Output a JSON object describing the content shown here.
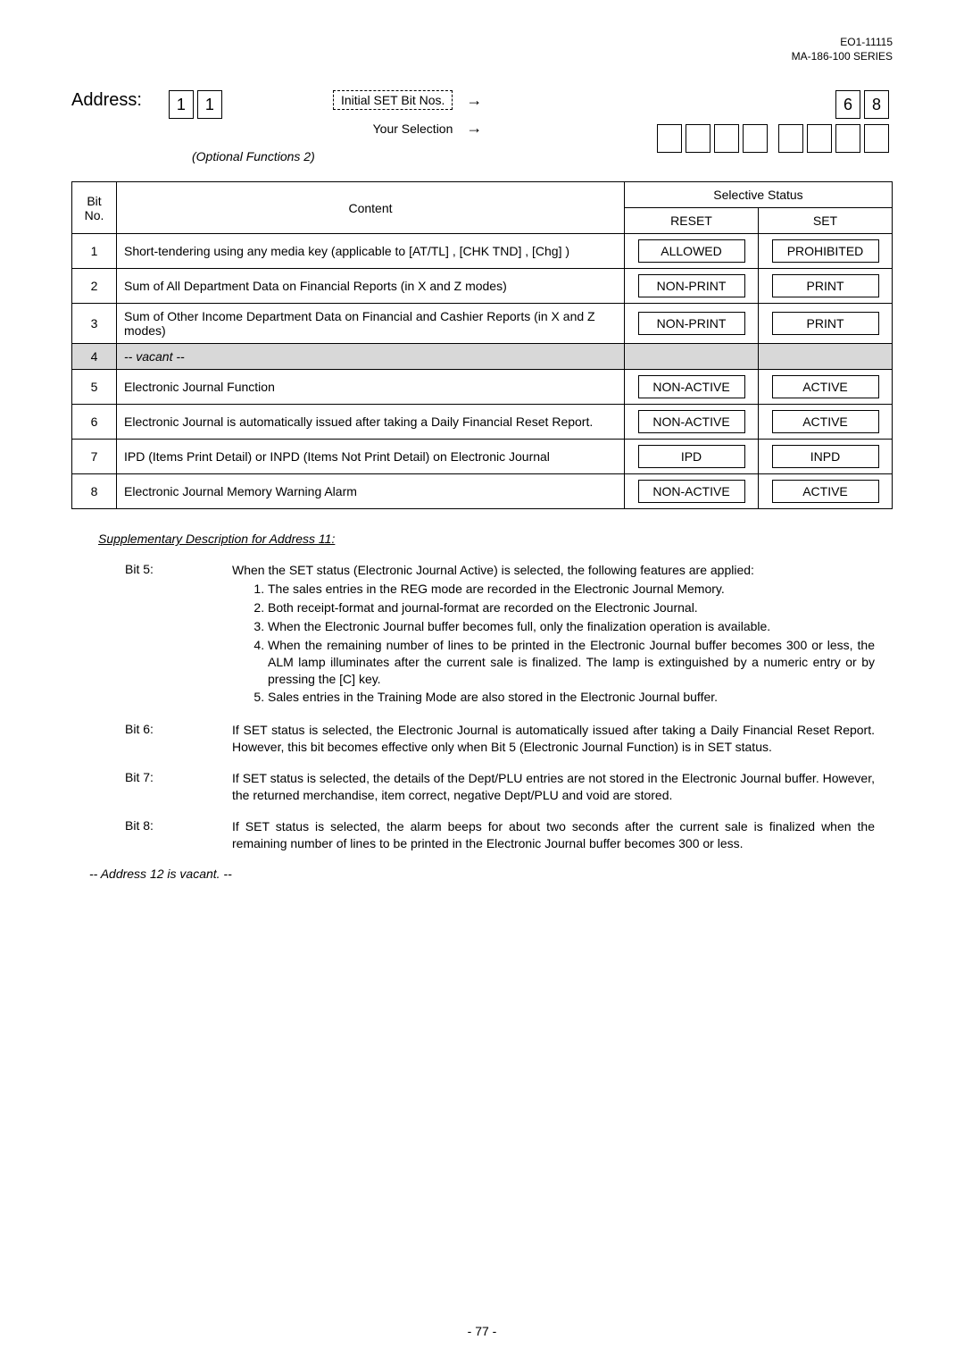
{
  "header": {
    "code": "EO1-11115",
    "series": "MA-186-100 SERIES"
  },
  "address": {
    "label": "Address:",
    "digits": [
      "1",
      "1"
    ],
    "initial_label": "Initial SET Bit Nos.",
    "arrow1": "→",
    "selection_label": "Your Selection",
    "arrow2": "→",
    "preset_digits": [
      "6",
      "8"
    ],
    "subtitle": "(Optional Functions 2)"
  },
  "table": {
    "headers": {
      "bit": "Bit\nNo.",
      "content": "Content",
      "status": "Selective Status",
      "reset": "RESET",
      "set": "SET"
    },
    "rows": [
      {
        "bit": "1",
        "content": "Short-tendering using any media key (applicable to [AT/TL] , [CHK TND] , [Chg] )",
        "reset": "ALLOWED",
        "set": "PROHIBITED"
      },
      {
        "bit": "2",
        "content": "Sum of All Department Data on Financial Reports (in X and Z modes)",
        "reset": "NON-PRINT",
        "set": "PRINT"
      },
      {
        "bit": "3",
        "content": "Sum of Other Income Department Data on Financial and Cashier Reports (in X and Z modes)",
        "reset": "NON-PRINT",
        "set": "PRINT"
      },
      {
        "bit": "4",
        "content": "-- vacant --",
        "vacant": true
      },
      {
        "bit": "5",
        "content": "Electronic Journal Function",
        "reset": "NON-ACTIVE",
        "set": "ACTIVE"
      },
      {
        "bit": "6",
        "content": "Electronic Journal is automatically issued after taking a Daily Financial Reset Report.",
        "reset": "NON-ACTIVE",
        "set": "ACTIVE"
      },
      {
        "bit": "7",
        "content": "IPD (Items Print Detail) or INPD (Items Not Print Detail) on Electronic Journal",
        "reset": "IPD",
        "set": "INPD"
      },
      {
        "bit": "8",
        "content": "Electronic Journal Memory Warning Alarm",
        "reset": "NON-ACTIVE",
        "set": "ACTIVE"
      }
    ]
  },
  "supp": {
    "title": "Supplementary Description for Address 11:",
    "bit5": {
      "label": "Bit 5:",
      "intro": "When the SET status (Electronic Journal Active) is selected, the following features are applied:",
      "items": [
        "The sales entries in the  REG  mode are recorded in the Electronic Journal Memory.",
        "Both receipt-format and journal-format are recorded on the Electronic Journal.",
        "When the Electronic Journal buffer becomes full, only the finalization operation is available.",
        "When the remaining number of lines to be printed in the Electronic Journal buffer becomes 300 or less, the  ALM  lamp illuminates after the current sale is finalized. The lamp is extinguished by a numeric entry or by pressing the [C] key.",
        "Sales entries in the Training Mode are also stored in the Electronic Journal buffer."
      ]
    },
    "bit6": {
      "label": "Bit 6:",
      "text": "If SET status is selected, the Electronic Journal is automatically issued after taking a Daily Financial Reset Report. However, this bit becomes effective only when Bit 5 (Electronic Journal Function) is in SET status."
    },
    "bit7": {
      "label": "Bit 7:",
      "text": "If SET status is selected, the details of the Dept/PLU entries are not stored in the Electronic Journal buffer. However, the returned merchandise, item correct, negative Dept/PLU and void are stored."
    },
    "bit8": {
      "label": "Bit 8:",
      "text": "If SET status is selected, the alarm beeps for about two seconds after the current sale is finalized when the remaining number of lines to be printed in the Electronic Journal buffer becomes 300 or less."
    }
  },
  "footer_note": "-- Address 12 is vacant. --",
  "page_num": "- 77 -"
}
